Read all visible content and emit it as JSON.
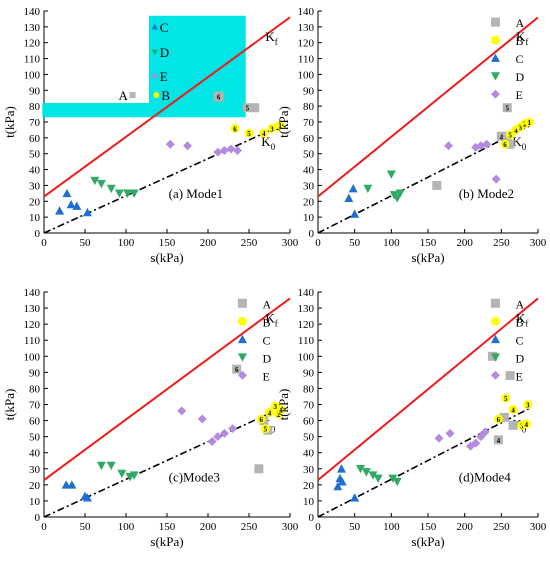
{
  "colors": {
    "A": "#b4b4b4",
    "B": "#ffff00",
    "C": "#1f6fd1",
    "D": "#2eaa66",
    "E": "#b48be0",
    "Kf_line": "#ee1c1c",
    "K0_line": "#000000",
    "highlight": "#00e5e5"
  },
  "shared": {
    "xlabel": "s(kPa)",
    "ylabel": "t(kPa)",
    "xlim": [
      0,
      300
    ],
    "ylim": [
      0,
      140
    ],
    "xticks": [
      "0",
      "50",
      "100",
      "150",
      "200",
      "250",
      "300"
    ],
    "yticks": [
      "0",
      "10",
      "20",
      "30",
      "40",
      "50",
      "60",
      "70",
      "80",
      "90",
      "100",
      "110",
      "120",
      "130",
      "140"
    ],
    "kf_label": "K",
    "kf_sub": "f",
    "k0_label": "K",
    "k0_sub": "0",
    "legend": [
      {
        "name": "A",
        "shape": "square",
        "color": "#b4b4b4"
      },
      {
        "name": "B",
        "shape": "circle",
        "color": "#ffff00"
      },
      {
        "name": "C",
        "shape": "triangle-up",
        "color": "#1f6fd1"
      },
      {
        "name": "D",
        "shape": "triangle-down",
        "color": "#2eaa66"
      },
      {
        "name": "E",
        "shape": "diamond",
        "color": "#b48be0"
      }
    ]
  },
  "chart_data": [
    {
      "type": "scatter",
      "panel_label": "(a) Mode1",
      "lines": {
        "Kf": {
          "x": [
            0,
            300
          ],
          "y": [
            23,
            136
          ]
        },
        "K0": {
          "x": [
            0,
            290
          ],
          "y": [
            0,
            68
          ]
        }
      },
      "series": [
        {
          "name": "A",
          "points": [
            [
              248,
              79
            ],
            [
              257,
              79
            ]
          ],
          "labels": [
            "5",
            ""
          ]
        },
        {
          "name": "B",
          "points": [
            [
              233,
              66
            ],
            [
              250,
              63
            ],
            [
              268,
              63
            ],
            [
              278,
              66
            ],
            [
              285,
              67
            ],
            [
              288,
              68
            ]
          ],
          "labels": [
            "6",
            "5",
            "4",
            "3",
            "2",
            "1"
          ]
        },
        {
          "name": "C",
          "points": [
            [
              19,
              14
            ],
            [
              28,
              25
            ],
            [
              33,
              18
            ],
            [
              40,
              17
            ],
            [
              53,
              13
            ]
          ],
          "labels": [
            "",
            "",
            "",
            "",
            ""
          ]
        },
        {
          "name": "D",
          "points": [
            [
              62,
              33
            ],
            [
              70,
              31
            ],
            [
              82,
              28
            ],
            [
              92,
              25
            ],
            [
              102,
              25
            ],
            [
              110,
              25
            ]
          ],
          "labels": [
            "",
            "",
            "",
            "",
            "",
            ""
          ]
        },
        {
          "name": "E",
          "points": [
            [
              154,
              56
            ],
            [
              175,
              55
            ],
            [
              212,
              51
            ],
            [
              220,
              52
            ],
            [
              228,
              53
            ],
            [
              236,
              52
            ]
          ],
          "labels": [
            "",
            "",
            "",
            "",
            "",
            ""
          ]
        }
      ],
      "inset_legend": {
        "items": [
          {
            "name": "C",
            "shape": "triangle-up",
            "color": "#1f6fd1"
          },
          {
            "name": "D",
            "shape": "triangle-down",
            "color": "#2eaa66"
          },
          {
            "name": "E",
            "shape": "diamond",
            "color": "#b48be0"
          },
          {
            "name": "A",
            "shape": "square",
            "color": "#b4b4b4"
          },
          {
            "name": "B",
            "shape": "circle",
            "color": "#ffff00"
          }
        ],
        "badge": "6"
      }
    },
    {
      "type": "scatter",
      "panel_label": "(b) Mode2",
      "lines": {
        "Kf": {
          "x": [
            0,
            300
          ],
          "y": [
            23,
            136
          ]
        },
        "K0": {
          "x": [
            0,
            290
          ],
          "y": [
            0,
            68
          ]
        }
      },
      "series": [
        {
          "name": "A",
          "points": [
            [
              162,
              30
            ],
            [
              250,
              61
            ],
            [
              258,
              79
            ],
            [
              258,
              61
            ],
            [
              262,
              56
            ]
          ],
          "labels": [
            "",
            "4",
            "5",
            "",
            ""
          ]
        },
        {
          "name": "B",
          "points": [
            [
              255,
              56
            ],
            [
              262,
              62
            ],
            [
              270,
              65
            ],
            [
              276,
              67
            ],
            [
              282,
              69
            ],
            [
              288,
              70
            ]
          ],
          "labels": [
            "6",
            "5",
            "4",
            "3",
            "2",
            "1"
          ]
        },
        {
          "name": "C",
          "points": [
            [
              42,
              22
            ],
            [
              48,
              28
            ],
            [
              50,
              12
            ]
          ],
          "labels": [
            "",
            "",
            ""
          ]
        },
        {
          "name": "D",
          "points": [
            [
              68,
              28
            ],
            [
              100,
              37
            ],
            [
              104,
              24
            ],
            [
              108,
              22
            ],
            [
              112,
              25
            ]
          ],
          "labels": [
            "",
            "",
            "",
            "",
            ""
          ]
        },
        {
          "name": "E",
          "points": [
            [
              178,
              55
            ],
            [
              215,
              54
            ],
            [
              222,
              55
            ],
            [
              230,
              56
            ],
            [
              243,
              34
            ]
          ],
          "labels": [
            "",
            "",
            "",
            "",
            ""
          ]
        }
      ]
    },
    {
      "type": "scatter",
      "panel_label": "(c)Mode3",
      "lines": {
        "Kf": {
          "x": [
            0,
            300
          ],
          "y": [
            23,
            136
          ]
        },
        "K0": {
          "x": [
            0,
            290
          ],
          "y": [
            0,
            68
          ]
        }
      },
      "series": [
        {
          "name": "A",
          "points": [
            [
              235,
              92
            ],
            [
              262,
              30
            ],
            [
              268,
              60
            ],
            [
              273,
              54
            ]
          ],
          "labels": [
            "6",
            "",
            "",
            ""
          ]
        },
        {
          "name": "B",
          "points": [
            [
              265,
              61
            ],
            [
              270,
              55
            ],
            [
              275,
              65
            ],
            [
              282,
              69
            ],
            [
              286,
              64
            ],
            [
              289,
              67
            ]
          ],
          "labels": [
            "6",
            "5",
            "4",
            "3",
            "2",
            "1"
          ]
        },
        {
          "name": "C",
          "points": [
            [
              27,
              20
            ],
            [
              34,
              20
            ],
            [
              50,
              13
            ],
            [
              53,
              12
            ]
          ],
          "labels": [
            "",
            "",
            "",
            ""
          ]
        },
        {
          "name": "D",
          "points": [
            [
              70,
              32
            ],
            [
              82,
              32
            ],
            [
              95,
              27
            ],
            [
              105,
              25
            ],
            [
              110,
              26
            ]
          ],
          "labels": [
            "",
            "",
            "",
            "",
            ""
          ]
        },
        {
          "name": "E",
          "points": [
            [
              168,
              66
            ],
            [
              193,
              61
            ],
            [
              205,
              47
            ],
            [
              212,
              50
            ],
            [
              220,
              52
            ],
            [
              230,
              55
            ]
          ],
          "labels": [
            "",
            "",
            "",
            "",
            "",
            ""
          ]
        }
      ]
    },
    {
      "type": "scatter",
      "panel_label": "(d)Mode4",
      "lines": {
        "Kf": {
          "x": [
            0,
            300
          ],
          "y": [
            23,
            136
          ]
        },
        "K0": {
          "x": [
            0,
            290
          ],
          "y": [
            0,
            68
          ]
        }
      },
      "series": [
        {
          "name": "A",
          "points": [
            [
              238,
              100
            ],
            [
              246,
              48
            ],
            [
              254,
              62
            ],
            [
              262,
              88
            ],
            [
              266,
              57
            ]
          ],
          "labels": [
            "",
            "4",
            "",
            "",
            ""
          ]
        },
        {
          "name": "B",
          "points": [
            [
              246,
              61
            ],
            [
              256,
              74
            ],
            [
              266,
              67
            ],
            [
              278,
              57
            ],
            [
              284,
              58
            ],
            [
              286,
              70
            ]
          ],
          "labels": [
            "6",
            "5",
            "4",
            "3",
            "4",
            "3"
          ]
        },
        {
          "name": "C",
          "points": [
            [
              27,
              19
            ],
            [
              30,
              24
            ],
            [
              32,
              30
            ],
            [
              33,
              22
            ],
            [
              50,
              12
            ]
          ],
          "labels": [
            "",
            "",
            "",
            "",
            ""
          ]
        },
        {
          "name": "D",
          "points": [
            [
              58,
              30
            ],
            [
              66,
              28
            ],
            [
              75,
              26
            ],
            [
              82,
              24
            ],
            [
              102,
              24
            ],
            [
              108,
              22
            ]
          ],
          "labels": [
            "",
            "",
            "",
            "",
            "",
            ""
          ]
        },
        {
          "name": "E",
          "points": [
            [
              165,
              49
            ],
            [
              180,
              52
            ],
            [
              208,
              44
            ],
            [
              215,
              46
            ],
            [
              222,
              50
            ],
            [
              228,
              53
            ]
          ],
          "labels": [
            "",
            "",
            "",
            "",
            "",
            ""
          ]
        }
      ]
    }
  ]
}
